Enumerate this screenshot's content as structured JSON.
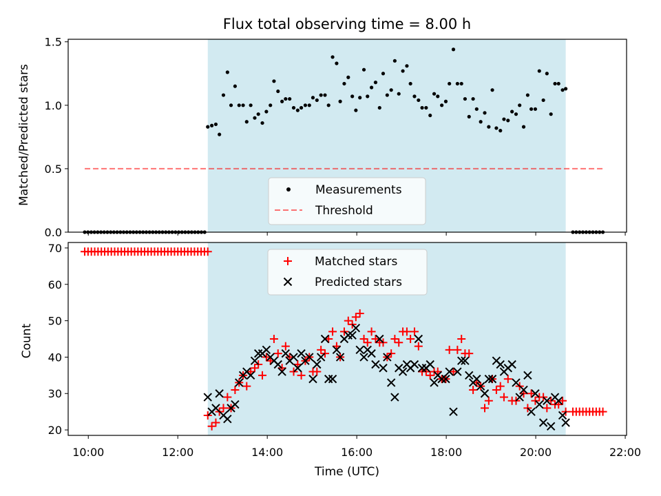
{
  "chart_data": {
    "type": "scatter",
    "title": "Flux total observing time = 8.00 h",
    "xlabel": "Time (UTC)",
    "x_ticks": [
      "10:00",
      "12:00",
      "14:00",
      "16:00",
      "18:00",
      "20:00",
      "22:00"
    ],
    "x_tick_hours": [
      10,
      12,
      14,
      16,
      18,
      20,
      22
    ],
    "xlim_hours": [
      9.55,
      22.03
    ],
    "shaded_interval_hours": [
      12.67,
      20.67
    ],
    "colors": {
      "shade": "#add8e6",
      "threshold": "#ff0000",
      "matched": "#ff0000",
      "predicted": "#000000",
      "measurement": "#000000"
    },
    "panels": [
      {
        "id": "ratio",
        "ylabel": "Matched/Predicted stars",
        "ylim": [
          0,
          1.52
        ],
        "y_ticks": [
          "0.0",
          "0.5",
          "1.0",
          "1.5"
        ],
        "y_tick_values": [
          0,
          0.5,
          1.0,
          1.5
        ],
        "legend_location": "lower-center",
        "legend": [
          "Measurements",
          "Threshold"
        ],
        "threshold": {
          "name": "Threshold",
          "value": 0.5,
          "x_range_hours": [
            9.92,
            21.5
          ]
        },
        "measurements": {
          "name": "Measurements",
          "zero_before": {
            "start": 9.92,
            "end": 12.6,
            "count": 38
          },
          "zero_after": {
            "start": 20.83,
            "end": 21.5,
            "count": 10
          },
          "x": [
            12.67,
            12.76,
            12.85,
            12.93,
            13.02,
            13.11,
            13.19,
            13.28,
            13.37,
            13.46,
            13.54,
            13.63,
            13.72,
            13.8,
            13.89,
            13.98,
            14.07,
            14.15,
            14.24,
            14.33,
            14.41,
            14.5,
            14.59,
            14.68,
            14.76,
            14.85,
            14.94,
            15.02,
            15.11,
            15.2,
            15.29,
            15.37,
            15.46,
            15.55,
            15.63,
            15.72,
            15.81,
            15.9,
            15.98,
            16.07,
            16.16,
            16.24,
            16.33,
            16.42,
            16.51,
            16.59,
            16.68,
            16.77,
            16.85,
            16.94,
            17.03,
            17.12,
            17.2,
            17.29,
            17.38,
            17.46,
            17.55,
            17.64,
            17.73,
            17.81,
            17.9,
            17.99,
            18.07,
            18.16,
            18.25,
            18.34,
            18.42,
            18.51,
            18.6,
            18.68,
            18.77,
            18.86,
            18.95,
            19.03,
            19.12,
            19.21,
            19.29,
            19.38,
            19.47,
            19.56,
            19.64,
            19.73,
            19.82,
            19.9,
            19.99,
            20.08,
            20.17,
            20.25,
            20.34,
            20.43,
            20.51,
            20.6,
            20.67
          ],
          "y": [
            0.83,
            0.84,
            0.85,
            0.77,
            1.08,
            1.26,
            1.0,
            1.15,
            1.0,
            1.0,
            0.87,
            1.0,
            0.9,
            0.93,
            0.86,
            0.95,
            1.0,
            1.19,
            1.11,
            1.03,
            1.05,
            1.05,
            0.98,
            0.96,
            0.98,
            1.0,
            1.0,
            1.06,
            1.04,
            1.08,
            1.08,
            1.0,
            1.38,
            1.33,
            1.03,
            1.17,
            1.22,
            1.07,
            0.96,
            1.06,
            1.28,
            1.07,
            1.14,
            1.18,
            0.98,
            1.25,
            1.08,
            1.12,
            1.35,
            1.09,
            1.27,
            1.31,
            1.17,
            1.07,
            1.04,
            0.98,
            0.98,
            0.92,
            1.09,
            1.07,
            1.0,
            1.03,
            1.17,
            1.44,
            1.17,
            1.17,
            1.05,
            0.91,
            1.05,
            0.97,
            0.87,
            0.94,
            0.83,
            1.12,
            0.82,
            0.8,
            0.89,
            0.88,
            0.95,
            0.93,
            1.0,
            0.83,
            1.08,
            0.97,
            0.97,
            1.27,
            1.04,
            1.25,
            0.93,
            1.17,
            1.17,
            1.12,
            1.13
          ]
        }
      },
      {
        "id": "count",
        "ylabel": "Count",
        "ylim": [
          18.5,
          71.5
        ],
        "y_ticks": [
          "20",
          "30",
          "40",
          "50",
          "60",
          "70"
        ],
        "y_tick_values": [
          20,
          30,
          40,
          50,
          60,
          70
        ],
        "legend_location": "upper-center",
        "legend": [
          "Matched stars",
          "Predicted stars"
        ],
        "matched_flat_before": {
          "start": 9.92,
          "end": 12.67,
          "count": 38,
          "value": 69
        },
        "matched_flat_after": {
          "start": 20.83,
          "end": 21.5,
          "count": 10,
          "value": 25
        },
        "matched": {
          "name": "Matched stars",
          "x": [
            12.67,
            12.76,
            12.85,
            12.93,
            13.02,
            13.11,
            13.19,
            13.28,
            13.37,
            13.46,
            13.54,
            13.63,
            13.72,
            13.8,
            13.89,
            13.98,
            14.07,
            14.15,
            14.24,
            14.33,
            14.41,
            14.5,
            14.59,
            14.68,
            14.76,
            14.85,
            14.94,
            15.02,
            15.11,
            15.2,
            15.29,
            15.37,
            15.46,
            15.55,
            15.63,
            15.72,
            15.81,
            15.9,
            15.98,
            16.07,
            16.16,
            16.24,
            16.33,
            16.42,
            16.51,
            16.59,
            16.68,
            16.77,
            16.85,
            16.94,
            17.03,
            17.12,
            17.2,
            17.29,
            17.38,
            17.46,
            17.55,
            17.64,
            17.73,
            17.81,
            17.9,
            17.99,
            18.07,
            18.16,
            18.25,
            18.34,
            18.42,
            18.51,
            18.6,
            18.68,
            18.77,
            18.86,
            18.95,
            19.03,
            19.12,
            19.21,
            19.29,
            19.38,
            19.47,
            19.56,
            19.64,
            19.73,
            19.82,
            19.9,
            19.99,
            20.08,
            20.17,
            20.25,
            20.34,
            20.43,
            20.51,
            20.6,
            20.67
          ],
          "y": [
            24,
            21,
            22,
            25,
            26,
            29,
            26,
            31,
            33,
            35,
            32,
            36,
            37,
            38,
            35,
            40,
            39,
            45,
            41,
            37,
            43,
            40,
            36,
            38,
            35,
            39,
            40,
            36,
            36,
            42,
            41,
            45,
            47,
            43,
            40,
            47,
            50,
            49,
            51,
            52,
            45,
            44,
            47,
            45,
            44,
            44,
            40,
            41,
            45,
            44,
            47,
            47,
            45,
            47,
            43,
            36,
            36,
            35,
            36,
            36,
            34,
            34,
            42,
            36,
            42,
            45,
            41,
            41,
            31,
            33,
            32,
            26,
            28,
            34,
            31,
            32,
            29,
            34,
            28,
            28,
            32,
            30,
            26,
            30,
            28,
            29,
            29,
            26,
            28,
            27,
            27,
            28,
            25
          ]
        },
        "predicted": {
          "name": "Predicted stars",
          "x": [
            12.67,
            12.76,
            12.85,
            12.93,
            13.02,
            13.11,
            13.19,
            13.28,
            13.37,
            13.46,
            13.54,
            13.63,
            13.72,
            13.8,
            13.89,
            13.98,
            14.07,
            14.15,
            14.24,
            14.33,
            14.41,
            14.5,
            14.59,
            14.68,
            14.76,
            14.85,
            14.94,
            15.02,
            15.11,
            15.2,
            15.29,
            15.37,
            15.46,
            15.55,
            15.63,
            15.72,
            15.81,
            15.9,
            15.98,
            16.07,
            16.16,
            16.24,
            16.33,
            16.42,
            16.51,
            16.59,
            16.68,
            16.77,
            16.85,
            16.94,
            17.03,
            17.12,
            17.2,
            17.29,
            17.38,
            17.46,
            17.55,
            17.64,
            17.73,
            17.81,
            17.9,
            17.99,
            18.07,
            18.16,
            18.25,
            18.34,
            18.42,
            18.51,
            18.6,
            18.68,
            18.77,
            18.86,
            18.95,
            19.03,
            19.12,
            19.21,
            19.29,
            19.38,
            19.47,
            19.56,
            19.64,
            19.73,
            19.82,
            19.9,
            19.99,
            20.08,
            20.17,
            20.25,
            20.34,
            20.43,
            20.51,
            20.6,
            20.67
          ],
          "y": [
            29,
            25,
            26,
            30,
            24,
            23,
            26,
            27,
            33,
            35,
            36,
            35,
            39,
            41,
            41,
            42,
            40,
            39,
            38,
            36,
            41,
            39,
            40,
            37,
            41,
            39,
            40,
            34,
            38,
            40,
            45,
            34,
            34,
            42,
            40,
            45,
            46,
            46,
            48,
            42,
            40,
            42,
            41,
            38,
            45,
            37,
            40,
            33,
            29,
            37,
            36,
            38,
            37,
            38,
            45,
            37,
            37,
            38,
            33,
            35,
            34,
            34,
            36,
            25,
            36,
            39,
            39,
            35,
            33,
            34,
            32,
            30,
            34,
            34,
            39,
            38,
            36,
            37,
            38,
            33,
            29,
            31,
            35,
            25,
            30,
            27,
            22,
            28,
            21,
            29,
            28,
            24,
            22
          ]
        }
      }
    ]
  }
}
